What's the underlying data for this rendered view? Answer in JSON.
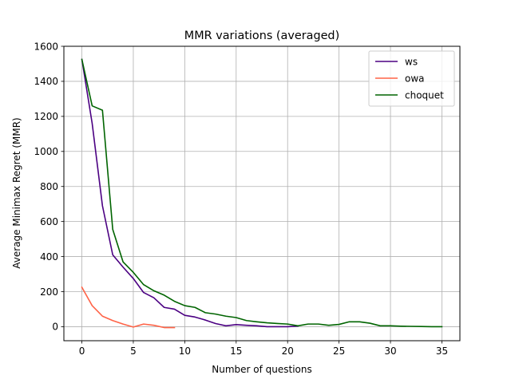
{
  "chart_data": {
    "type": "line",
    "title": "MMR variations (averaged)",
    "xlabel": "Number of questions",
    "ylabel": "Average Minimax Regret (MMR)",
    "xlim": [
      -1.75,
      36.75
    ],
    "ylim": [
      -80,
      1600
    ],
    "xticks": [
      0,
      5,
      10,
      15,
      20,
      25,
      30,
      35
    ],
    "yticks": [
      0,
      200,
      400,
      600,
      800,
      1000,
      1200,
      1400,
      1600
    ],
    "grid": true,
    "legend_position": "top-right",
    "series": [
      {
        "name": "ws",
        "color": "#4b0082",
        "x": [
          0,
          1,
          2,
          3,
          4,
          5,
          6,
          7,
          8,
          9,
          10,
          11,
          12,
          13,
          14,
          15,
          16,
          17,
          18,
          19,
          20,
          21
        ],
        "y": [
          1525,
          1160,
          690,
          410,
          340,
          275,
          195,
          165,
          110,
          100,
          65,
          55,
          38,
          18,
          5,
          12,
          8,
          5,
          0,
          0,
          0,
          3
        ]
      },
      {
        "name": "owa",
        "color": "#ff6347",
        "x": [
          0,
          1,
          2,
          3,
          4,
          5,
          6,
          7,
          8,
          9
        ],
        "y": [
          225,
          120,
          60,
          35,
          15,
          -2,
          15,
          8,
          -5,
          -5
        ]
      },
      {
        "name": "choquet",
        "color": "#006400",
        "x": [
          0,
          1,
          2,
          3,
          4,
          5,
          6,
          7,
          8,
          9,
          10,
          11,
          12,
          13,
          14,
          15,
          16,
          17,
          18,
          19,
          20,
          21,
          22,
          23,
          24,
          25,
          26,
          27,
          28,
          29,
          30,
          31,
          32,
          33,
          34,
          35
        ],
        "y": [
          1525,
          1260,
          1235,
          555,
          370,
          310,
          240,
          205,
          180,
          145,
          120,
          110,
          80,
          72,
          60,
          52,
          35,
          28,
          22,
          18,
          15,
          5,
          15,
          15,
          8,
          13,
          28,
          28,
          20,
          5,
          5,
          3,
          2,
          1,
          0,
          0
        ]
      }
    ]
  }
}
